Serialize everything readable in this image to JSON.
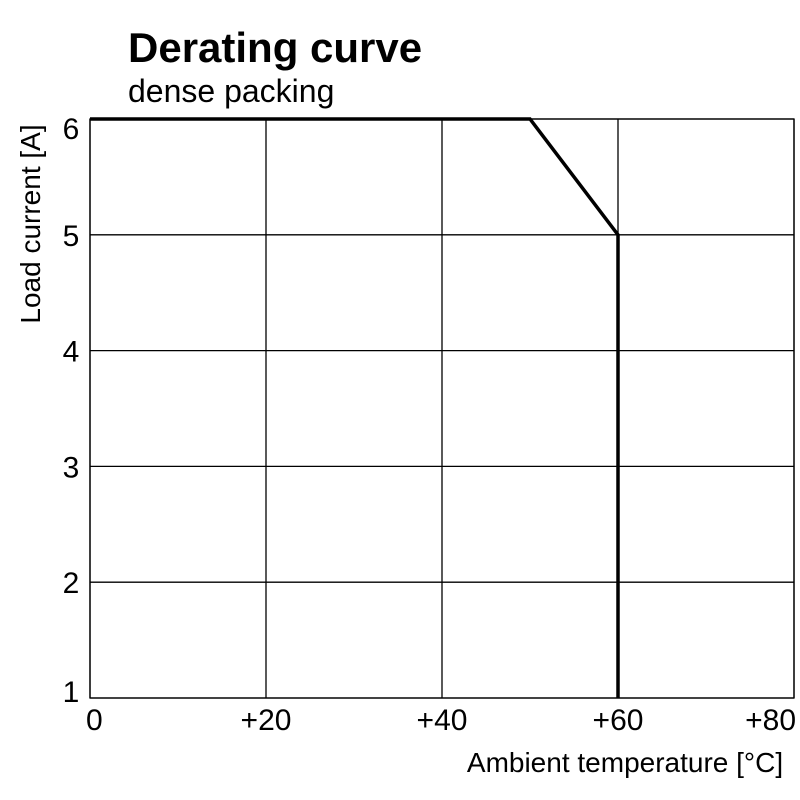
{
  "chart_data": {
    "type": "line",
    "title": "Derating curve",
    "subtitle": "dense packing",
    "xlabel": "Ambient temperature [°C]",
    "ylabel": "Load current [A]",
    "xlim": [
      0,
      80
    ],
    "ylim": [
      1,
      6
    ],
    "xticks": [
      0,
      20,
      40,
      60,
      80
    ],
    "xtick_labels": [
      "0",
      "+20",
      "+40",
      "+60",
      "+80"
    ],
    "yticks": [
      1,
      2,
      3,
      4,
      5,
      6
    ],
    "ytick_labels": [
      "1",
      "2",
      "3",
      "4",
      "5",
      "6"
    ],
    "grid": true,
    "series": [
      {
        "x": [
          0,
          50,
          60,
          60
        ],
        "y": [
          6,
          6,
          5,
          1
        ],
        "color": "#000000"
      }
    ]
  }
}
